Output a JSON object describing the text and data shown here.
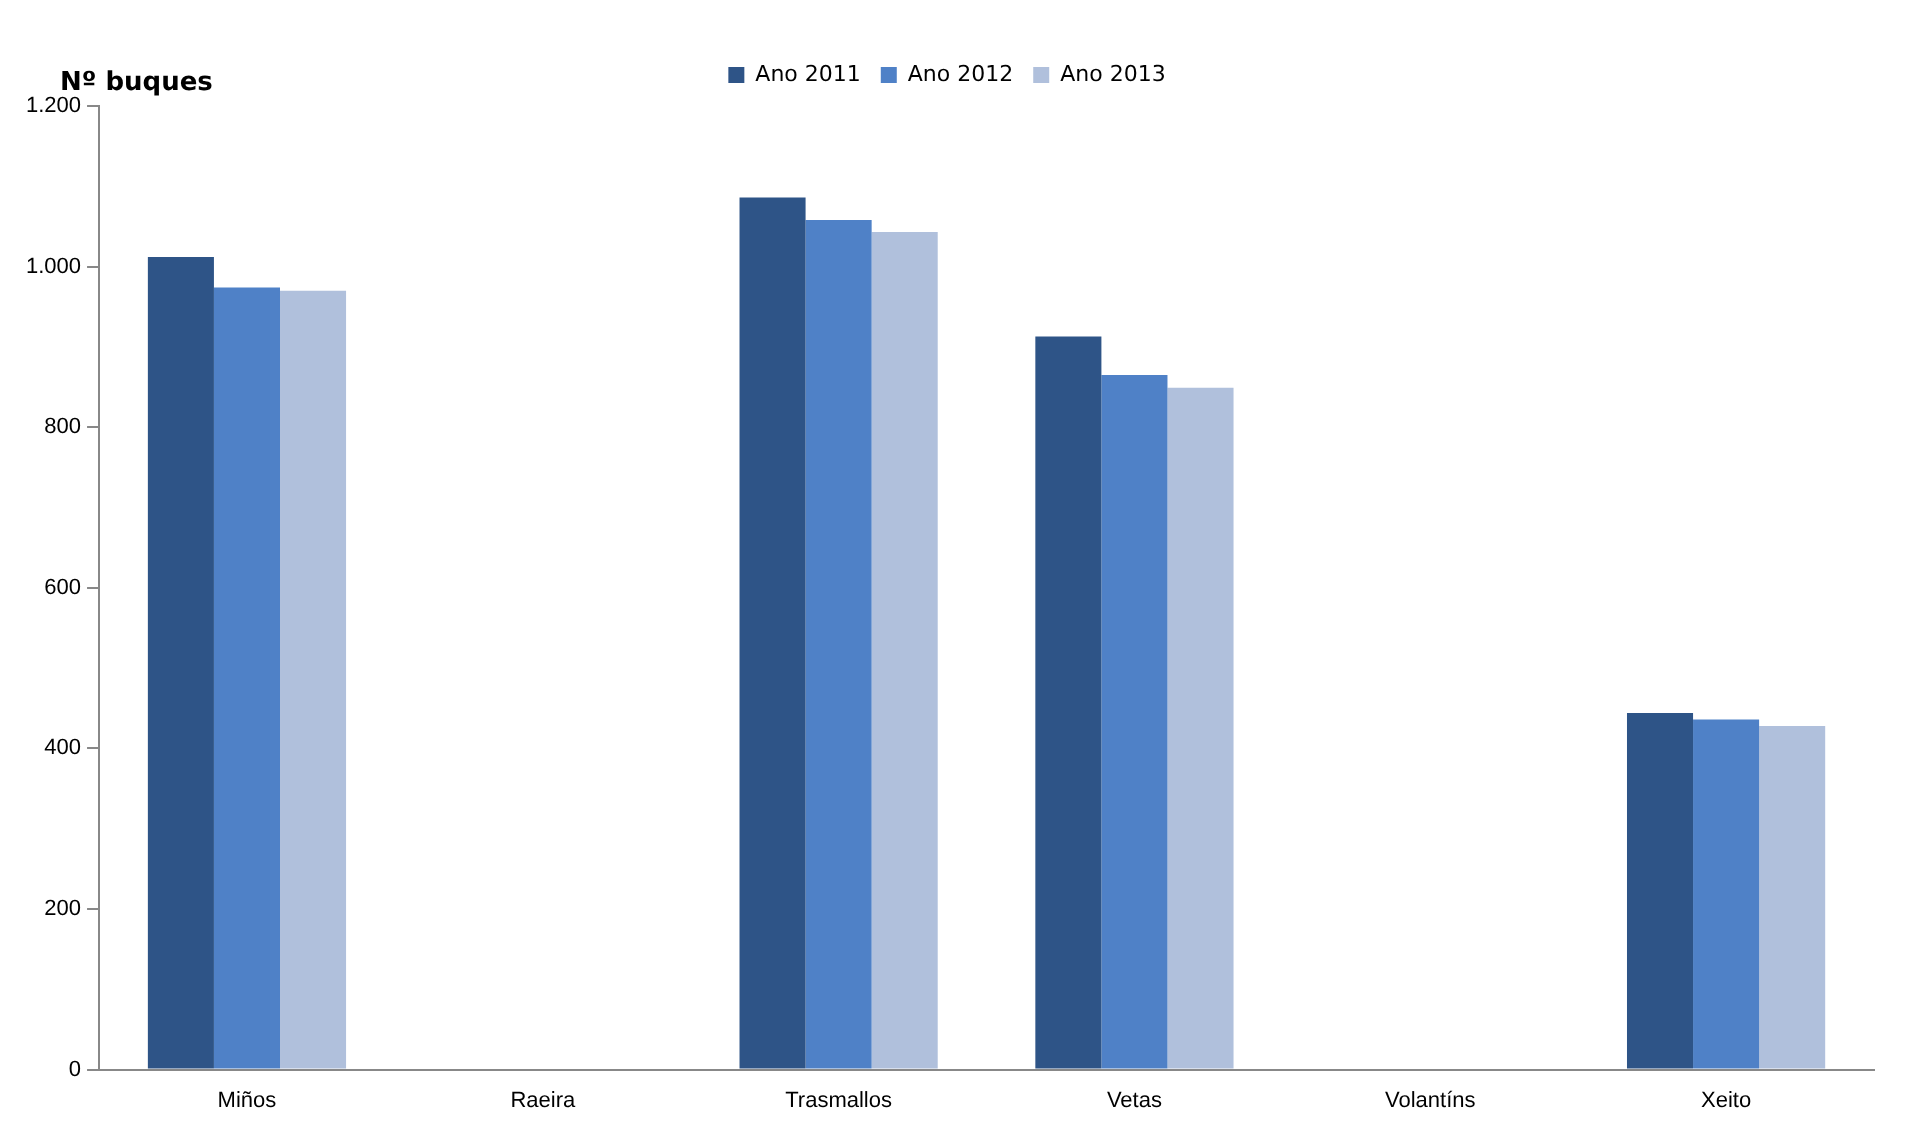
{
  "chart_data": {
    "type": "bar",
    "ylabel": "Nº buques",
    "categories": [
      "Miños",
      "Raeira",
      "Trasmallos",
      "Vetas",
      "Volantíns",
      "Xeito"
    ],
    "series": [
      {
        "name": "Ano 2011",
        "color": "#2e5487",
        "values": [
          1012,
          null,
          1086,
          913,
          null,
          444
        ]
      },
      {
        "name": "Ano 2012",
        "color": "#4f81c7",
        "values": [
          974,
          null,
          1058,
          865,
          null,
          436
        ]
      },
      {
        "name": "Ano 2013",
        "color": "#b0c0dc",
        "values": [
          970,
          null,
          1043,
          849,
          null,
          428
        ]
      }
    ],
    "ylim": [
      0,
      1200
    ],
    "yticks": [
      0,
      200,
      400,
      600,
      800,
      {
        "value": 1000,
        "label": "1.000"
      },
      {
        "value": 1200,
        "label": "1.200"
      }
    ],
    "grid": false,
    "legend": "top"
  }
}
